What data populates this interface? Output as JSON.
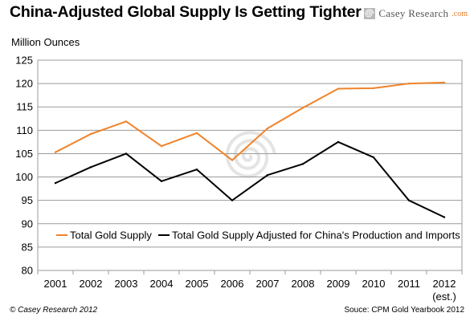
{
  "header": {
    "title": "China-Adjusted Global Supply Is Getting Tighter",
    "brand_name": "Casey Research",
    "brand_domain": ".com"
  },
  "footer": {
    "copyright": "© Casey Research 2012",
    "source": "Souce: CPM Gold Yearbook 2012"
  },
  "chart_data": {
    "type": "line",
    "title": "China-Adjusted Global Supply Is Getting Tighter",
    "ylabel": "Million Ounces",
    "xlabel": "",
    "categories": [
      "2001",
      "2002",
      "2003",
      "2004",
      "2005",
      "2006",
      "2007",
      "2008",
      "2009",
      "2010",
      "2011",
      "2012"
    ],
    "category_sublabels": [
      "",
      "",
      "",
      "",
      "",
      "",
      "",
      "",
      "",
      "",
      "",
      "(est.)"
    ],
    "ylim": [
      80,
      125
    ],
    "yticks": [
      80,
      85,
      90,
      95,
      100,
      105,
      110,
      115,
      120,
      125
    ],
    "grid": true,
    "legend_position": "inside-middle",
    "series": [
      {
        "name": "Total Gold Supply",
        "color": "#f0832a",
        "values": [
          105.3,
          109.2,
          111.9,
          106.6,
          109.4,
          103.6,
          110.4,
          114.8,
          118.9,
          119.0,
          120.0,
          120.2
        ]
      },
      {
        "name": "Total Gold Supply Adjusted for China's Production and Imports",
        "color": "#000000",
        "values": [
          98.7,
          102.1,
          105.0,
          99.1,
          101.6,
          95.0,
          100.4,
          102.8,
          107.5,
          104.2,
          95.0,
          91.4
        ]
      }
    ]
  }
}
